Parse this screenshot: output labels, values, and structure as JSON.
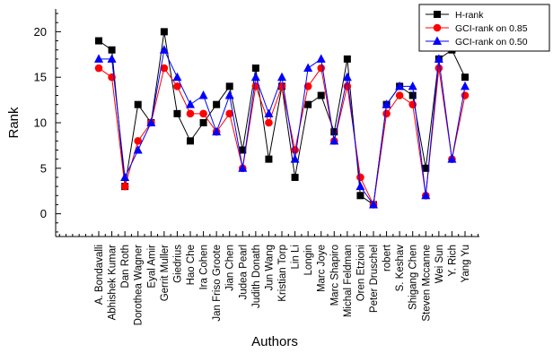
{
  "chart_data": {
    "type": "line",
    "xlabel": "Authors",
    "ylabel": "Rank",
    "ylim": [
      -2.5,
      22.5
    ],
    "yticks": [
      0,
      5,
      10,
      15,
      20
    ],
    "grid": false,
    "legend_position": "top-right",
    "categories": [
      "A. Bondavalli",
      "Abhishek Kumar",
      "Dan Roth",
      "Dorothea Wagner",
      "Eyal Amir",
      "Gerrit Muller",
      "Giedrius",
      "Hao Che",
      "Ira Cohen",
      "Jan Friso Groote",
      "Jian Chen",
      "Judea Pearl",
      "Judith Donath",
      "Jun Wang",
      "Kristian Torp",
      "Lin Li",
      "Longin",
      "Marc Joye",
      "Marc Shapiro",
      "Michal Feldman",
      "Oren Etzioni",
      "Peter Druschel",
      "robert",
      "S. Keshav",
      "Shigang Chen",
      "Steven Mccanne",
      "Wei Sun",
      "Y. Rich",
      "Yang Yu"
    ],
    "series": [
      {
        "name": "H-rank",
        "color": "#000000",
        "marker": "square",
        "values": [
          19,
          18,
          3,
          12,
          10,
          20,
          11,
          8,
          10,
          12,
          14,
          7,
          16,
          6,
          14,
          4,
          12,
          13,
          9,
          17,
          2,
          1,
          12,
          14,
          13,
          5,
          17,
          18,
          15
        ]
      },
      {
        "name": "GCI-rank on 0.85",
        "color": "#ff0000",
        "marker": "circle",
        "values": [
          16,
          15,
          3,
          8,
          10,
          16,
          14,
          11,
          11,
          9,
          11,
          5,
          14,
          10,
          14,
          7,
          14,
          16,
          8,
          14,
          4,
          1,
          11,
          13,
          12,
          2,
          16,
          6,
          13
        ]
      },
      {
        "name": "GCI-rank on 0.50",
        "color": "#0000ff",
        "marker": "triangle",
        "values": [
          17,
          17,
          4,
          7,
          10,
          18,
          15,
          12,
          13,
          9,
          13,
          5,
          15,
          11,
          15,
          6,
          16,
          17,
          8,
          15,
          3,
          1,
          12,
          14,
          14,
          2,
          17,
          6,
          14
        ]
      }
    ]
  }
}
